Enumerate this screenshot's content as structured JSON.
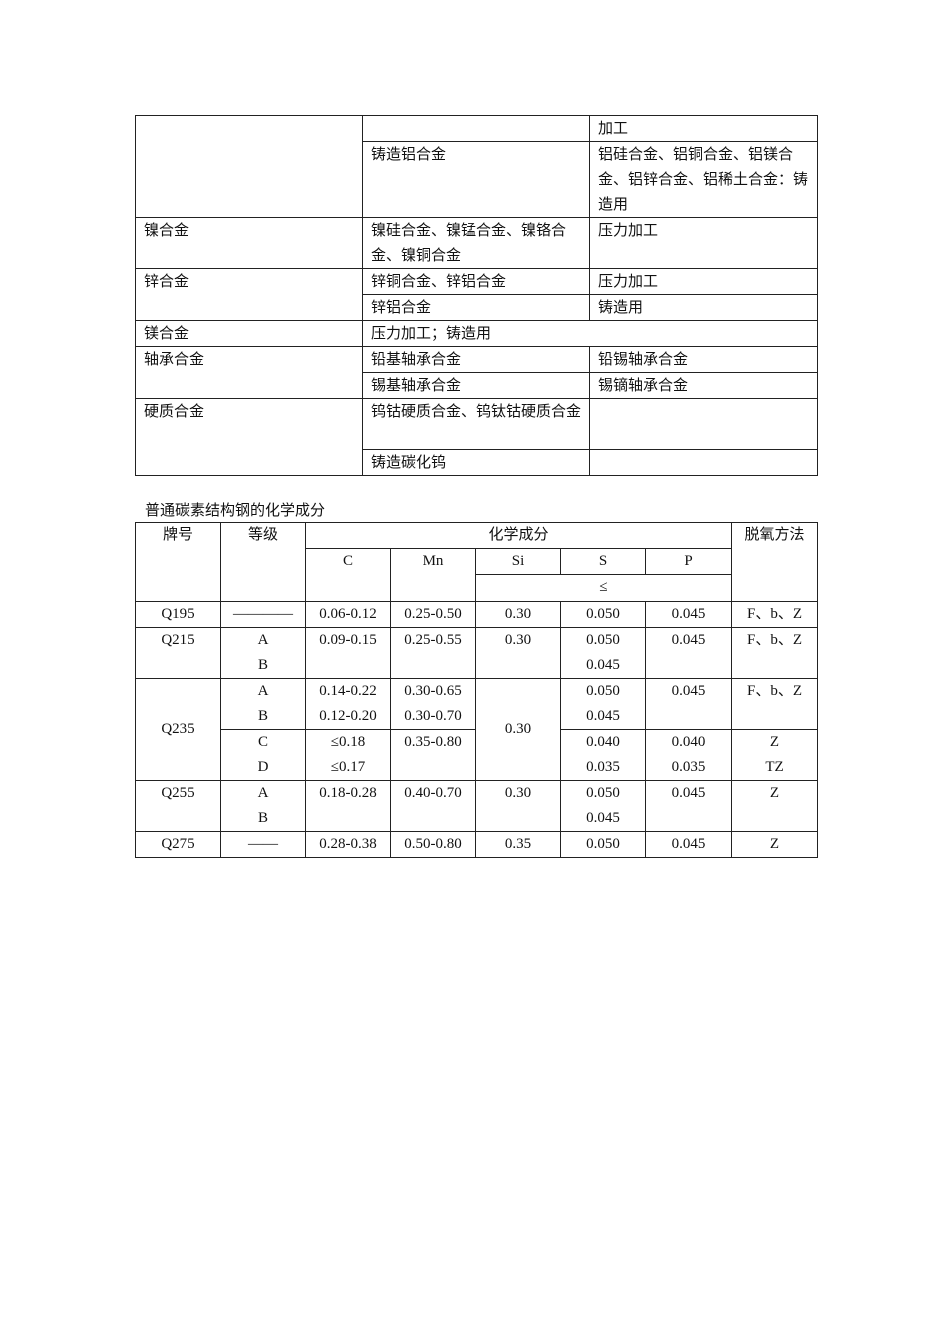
{
  "alloy_table": {
    "rows": [
      {
        "c1": "",
        "c2": "",
        "c3": "加工"
      },
      {
        "c2": "铸造铝合金",
        "c3": "铝硅合金、铝铜合金、铝镁合金、铝锌合金、铝稀土合金：铸造用"
      },
      {
        "c1": "镍合金",
        "c2": "镍硅合金、镍锰合金、镍铬合金、镍铜合金",
        "c3": "压力加工"
      },
      {
        "c1": "锌合金",
        "c2": "锌铜合金、锌铝合金",
        "c3": "压力加工"
      },
      {
        "c2": "锌铝合金",
        "c3": "铸造用"
      },
      {
        "c1": "镁合金",
        "c2": "压力加工；铸造用"
      },
      {
        "c1": "轴承合金",
        "c2": "铅基轴承合金",
        "c3": "铅锡轴承合金"
      },
      {
        "c2": "锡基轴承合金",
        "c3": "锡镝轴承合金"
      },
      {
        "c1": "硬质合金",
        "c2": "钨钴硬质合金、钨钛钴硬质合金",
        "c3": ""
      },
      {
        "c2": "铸造碳化钨",
        "c3": ""
      }
    ]
  },
  "steel_table": {
    "caption": "普通碳素结构钢的化学成分",
    "headers": {
      "grade_no": "牌号",
      "level": "等级",
      "chem": "化学成分",
      "deox": "脱氧方法",
      "C": "C",
      "Mn": "Mn",
      "Si": "Si",
      "S": "S",
      "P": "P",
      "le": "≤"
    },
    "rows": [
      {
        "no": "Q195",
        "level": "————",
        "C": "0.06-0.12",
        "Mn": "0.25-0.50",
        "Si": "0.30",
        "S": "0.050",
        "P": "0.045",
        "deox": "F、b、Z"
      },
      {
        "no": "Q215",
        "level": "A\nB",
        "C": "0.09-0.15",
        "Mn": "0.25-0.55",
        "Si": "0.30",
        "S": "0.050\n0.045",
        "P": "0.045",
        "deox": "F、b、Z"
      },
      {
        "no": "Q235",
        "level": "A\nB",
        "C": "0.14-0.22\n0.12-0.20",
        "Mn": "0.30-0.65\n0.30-0.70",
        "Si": "0.30",
        "S": "0.050\n0.045",
        "P": "0.045",
        "deox": "F、b、Z"
      },
      {
        "level": "C\nD",
        "C": "≤0.18\n≤0.17",
        "Mn": "0.35-0.80",
        "S": "0.040\n0.035",
        "P": "0.040\n0.035",
        "deox": "Z\nTZ"
      },
      {
        "no": "Q255",
        "level": "A\nB",
        "C": "0.18-0.28",
        "Mn": "0.40-0.70",
        "Si": "0.30",
        "S": "0.050\n0.045",
        "P": "0.045",
        "deox": "Z"
      },
      {
        "no": "Q275",
        "level": "——",
        "C": "0.28-0.38",
        "Mn": "0.50-0.80",
        "Si": "0.35",
        "S": "0.050",
        "P": "0.045",
        "deox": "Z"
      }
    ]
  }
}
